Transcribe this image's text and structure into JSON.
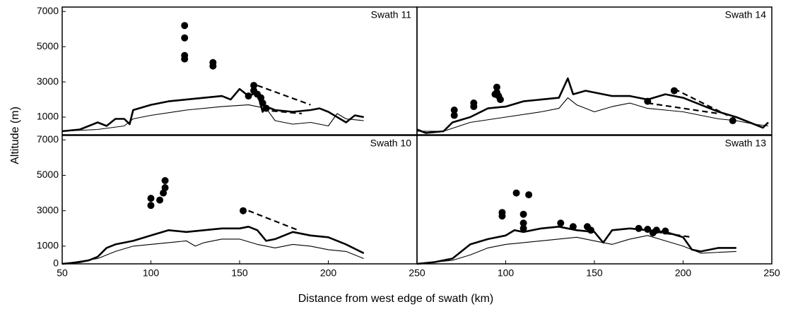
{
  "axis_labels": {
    "x": "Distance from west edge of swath (km)",
    "y": "Altitude (m)"
  },
  "chart_data": [
    {
      "type": "line",
      "title": "Swath 11",
      "xlim": [
        50,
        250
      ],
      "ylim": [
        0,
        7250
      ],
      "yticks": [
        1000,
        3000,
        5000,
        7000
      ],
      "series": [
        {
          "style": "thick",
          "color": "#000000",
          "x": [
            50,
            60,
            70,
            75,
            80,
            85,
            88,
            90,
            100,
            110,
            120,
            130,
            140,
            145,
            150,
            155,
            160,
            163,
            165,
            170,
            180,
            190,
            195,
            200,
            205,
            210,
            215,
            220
          ],
          "values": [
            200,
            300,
            700,
            500,
            900,
            900,
            600,
            1400,
            1700,
            1900,
            2000,
            2100,
            2200,
            2000,
            2600,
            2200,
            2400,
            1300,
            1600,
            1400,
            1300,
            1400,
            1500,
            1300,
            1000,
            700,
            1100,
            1000
          ]
        },
        {
          "style": "thin",
          "color": "#000000",
          "x": [
            50,
            70,
            85,
            90,
            100,
            120,
            140,
            155,
            165,
            170,
            180,
            190,
            200,
            205,
            210,
            220
          ],
          "values": [
            200,
            300,
            500,
            900,
            1100,
            1400,
            1600,
            1700,
            1500,
            800,
            600,
            700,
            500,
            1200,
            900,
            800
          ]
        },
        {
          "style": "dashed",
          "color": "#000000",
          "x": [
            160,
            190
          ],
          "values": [
            2800,
            1700
          ]
        },
        {
          "style": "dashed",
          "color": "#000000",
          "x": [
            163,
            185
          ],
          "values": [
            1400,
            1200
          ]
        },
        {
          "style": "dots",
          "color": "#000000",
          "x": [
            119,
            119,
            119,
            119,
            135,
            135,
            158,
            158,
            160,
            162,
            163,
            165,
            155
          ],
          "values": [
            6200,
            5500,
            4500,
            4300,
            4100,
            3900,
            2800,
            2500,
            2300,
            2100,
            1800,
            1500,
            2200
          ]
        }
      ]
    },
    {
      "type": "line",
      "title": "Swath 14",
      "xlim": [
        50,
        250
      ],
      "ylim": [
        0,
        7250
      ],
      "series": [
        {
          "style": "thick",
          "color": "#000000",
          "x": [
            50,
            55,
            65,
            70,
            80,
            90,
            100,
            110,
            120,
            130,
            135,
            138,
            145,
            160,
            170,
            180,
            190,
            200,
            210,
            220,
            230,
            240,
            245,
            248
          ],
          "values": [
            300,
            100,
            200,
            700,
            1000,
            1500,
            1600,
            1900,
            2000,
            2100,
            3200,
            2300,
            2500,
            2200,
            2200,
            2000,
            2300,
            2100,
            1700,
            1300,
            1000,
            600,
            400,
            700
          ]
        },
        {
          "style": "thin",
          "color": "#000000",
          "x": [
            50,
            65,
            80,
            100,
            120,
            130,
            135,
            140,
            150,
            160,
            170,
            180,
            190,
            200,
            210,
            220,
            230,
            240,
            248
          ],
          "values": [
            200,
            200,
            700,
            1000,
            1300,
            1500,
            2100,
            1700,
            1300,
            1600,
            1800,
            1500,
            1400,
            1300,
            1100,
            900,
            800,
            600,
            500
          ]
        },
        {
          "style": "dashed",
          "color": "#000000",
          "x": [
            195,
            225
          ],
          "values": [
            2600,
            1100
          ]
        },
        {
          "style": "dashed",
          "color": "#000000",
          "x": [
            180,
            220
          ],
          "values": [
            1800,
            1200
          ]
        },
        {
          "style": "dots",
          "color": "#000000",
          "x": [
            71,
            71,
            82,
            82,
            95,
            95,
            96,
            97,
            94,
            180,
            195,
            228
          ],
          "values": [
            1400,
            1100,
            1800,
            1600,
            2700,
            2400,
            2200,
            2000,
            2300,
            1900,
            2500,
            800
          ]
        }
      ]
    },
    {
      "type": "line",
      "title": "Swath 10",
      "xlim": [
        50,
        250
      ],
      "ylim": [
        0,
        7250
      ],
      "yticks": [
        0,
        1000,
        3000,
        5000,
        7000
      ],
      "xticks": [
        50,
        100,
        150,
        200,
        250
      ],
      "series": [
        {
          "style": "thick",
          "color": "#000000",
          "x": [
            50,
            60,
            65,
            70,
            75,
            80,
            90,
            100,
            110,
            120,
            130,
            140,
            150,
            155,
            160,
            165,
            170,
            180,
            190,
            200,
            210,
            220
          ],
          "values": [
            0,
            100,
            200,
            400,
            900,
            1100,
            1300,
            1600,
            1900,
            1800,
            1900,
            2000,
            2000,
            2100,
            1900,
            1300,
            1400,
            1800,
            1600,
            1500,
            1100,
            600
          ]
        },
        {
          "style": "thin",
          "color": "#000000",
          "x": [
            50,
            70,
            80,
            90,
            100,
            110,
            120,
            125,
            130,
            140,
            150,
            160,
            170,
            180,
            190,
            200,
            210,
            220
          ],
          "values": [
            0,
            300,
            700,
            1000,
            1100,
            1200,
            1300,
            1000,
            1200,
            1400,
            1400,
            1100,
            900,
            1100,
            1000,
            800,
            700,
            300
          ]
        },
        {
          "style": "dashed",
          "color": "#000000",
          "x": [
            155,
            183
          ],
          "values": [
            3000,
            1900
          ]
        },
        {
          "style": "dots",
          "color": "#000000",
          "x": [
            100,
            100,
            105,
            107,
            108,
            108,
            152
          ],
          "values": [
            3700,
            3300,
            3600,
            4000,
            4300,
            4700,
            3000
          ]
        }
      ]
    },
    {
      "type": "line",
      "title": "Swath 13",
      "xlim": [
        50,
        250
      ],
      "ylim": [
        0,
        7250
      ],
      "xticks": [
        100,
        150,
        200,
        250
      ],
      "series": [
        {
          "style": "thick",
          "color": "#000000",
          "x": [
            50,
            60,
            70,
            80,
            90,
            100,
            105,
            110,
            120,
            130,
            140,
            150,
            155,
            160,
            170,
            180,
            190,
            200,
            205,
            210,
            220,
            230
          ],
          "values": [
            0,
            100,
            300,
            1100,
            1400,
            1600,
            1900,
            1800,
            2000,
            2100,
            1900,
            1800,
            1200,
            1900,
            2000,
            1900,
            1800,
            1500,
            800,
            700,
            900,
            900
          ]
        },
        {
          "style": "thin",
          "color": "#000000",
          "x": [
            50,
            70,
            80,
            90,
            100,
            110,
            120,
            140,
            150,
            160,
            170,
            180,
            190,
            200,
            210,
            230
          ],
          "values": [
            0,
            200,
            500,
            900,
            1100,
            1200,
            1300,
            1500,
            1300,
            1100,
            1400,
            1600,
            1300,
            1000,
            600,
            700
          ]
        },
        {
          "style": "dashed",
          "color": "#000000",
          "x": [
            185,
            205
          ],
          "values": [
            1800,
            1500
          ]
        },
        {
          "style": "dots",
          "color": "#000000",
          "x": [
            98,
            98,
            106,
            110,
            110,
            110,
            113,
            131,
            138,
            146,
            148,
            175,
            180,
            185,
            190,
            183
          ],
          "values": [
            2900,
            2700,
            4000,
            2800,
            2300,
            2000,
            3900,
            2300,
            2100,
            2100,
            1900,
            2000,
            1950,
            1900,
            1850,
            1750
          ]
        }
      ]
    }
  ]
}
